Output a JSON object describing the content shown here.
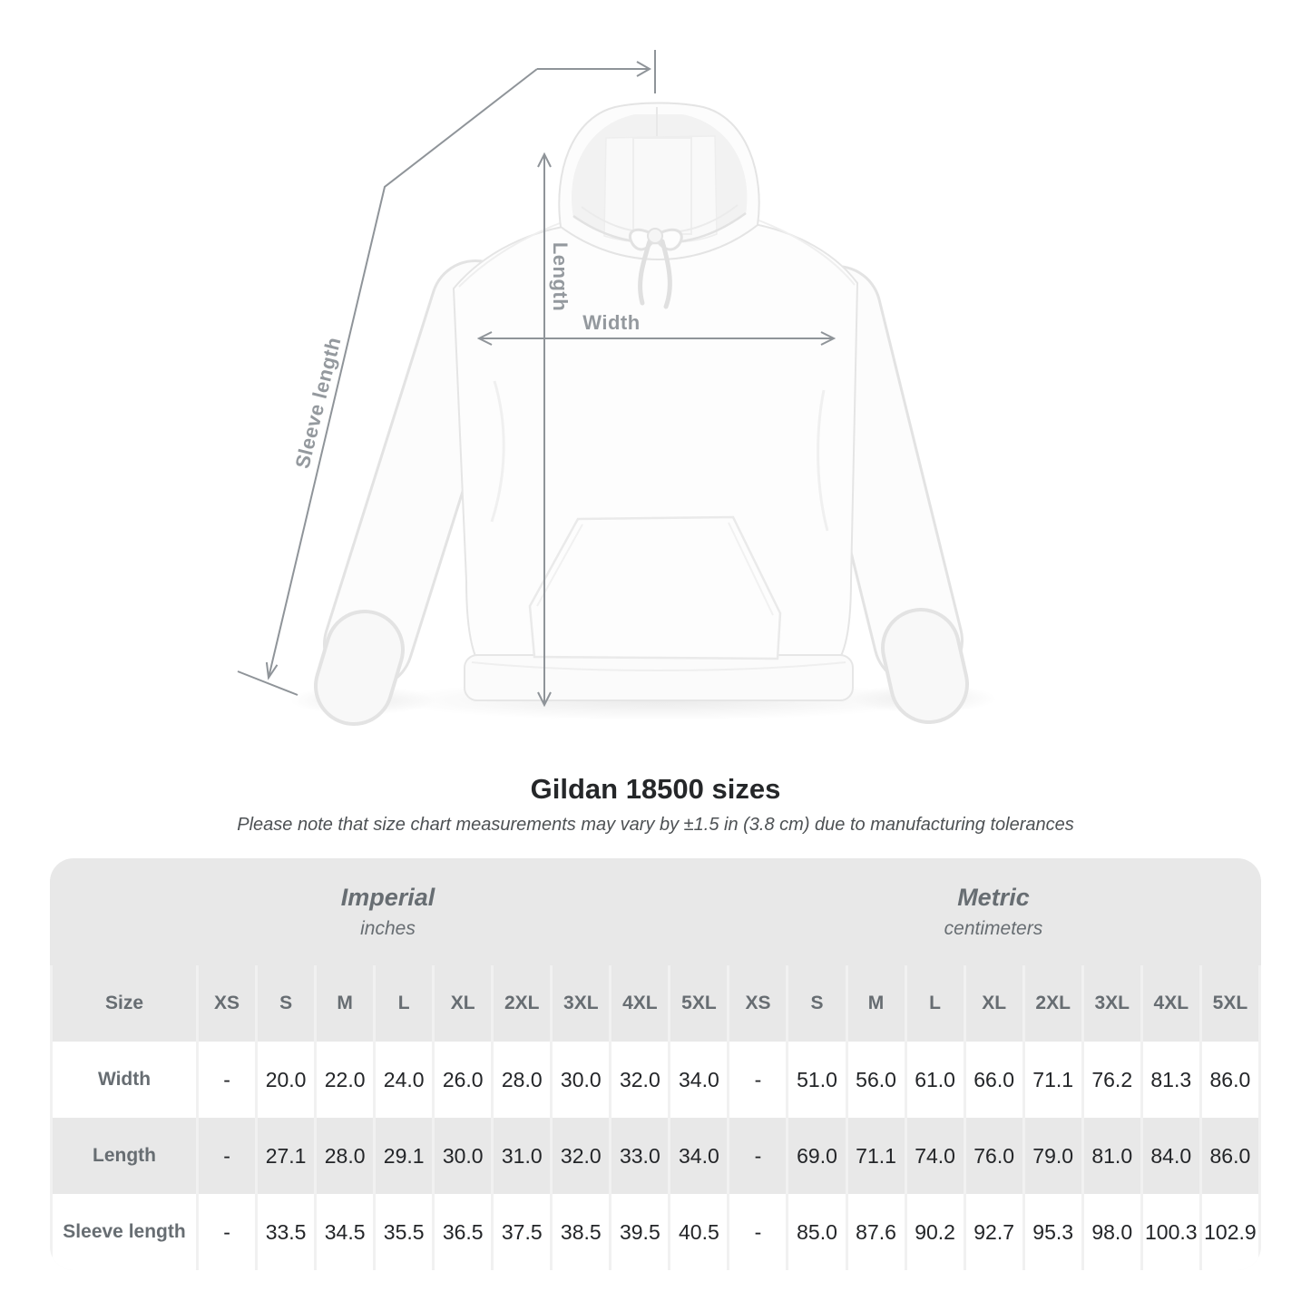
{
  "header": {
    "title": "Gildan 18500 sizes",
    "note": "Please note that size chart measurements may vary by ±1.5 in (3.8 cm) due to manufacturing tolerances"
  },
  "diagram": {
    "labels": {
      "width": "Width",
      "length": "Length",
      "sleeve": "Sleeve length"
    },
    "line_color": "#8f9499",
    "label_color": "#94999e"
  },
  "table": {
    "corner_label": "Size",
    "row_headers": [
      "Width",
      "Length",
      "Sleeve length"
    ],
    "sections": [
      {
        "title": "Imperial",
        "subtitle": "inches",
        "columns": [
          "XS",
          "S",
          "M",
          "L",
          "XL",
          "2XL",
          "3XL",
          "4XL",
          "5XL"
        ],
        "rows": [
          [
            "-",
            "20.0",
            "22.0",
            "24.0",
            "26.0",
            "28.0",
            "30.0",
            "32.0",
            "34.0"
          ],
          [
            "-",
            "27.1",
            "28.0",
            "29.1",
            "30.0",
            "31.0",
            "32.0",
            "33.0",
            "34.0"
          ],
          [
            "-",
            "33.5",
            "34.5",
            "35.5",
            "36.5",
            "37.5",
            "38.5",
            "39.5",
            "40.5"
          ]
        ]
      },
      {
        "title": "Metric",
        "subtitle": "centimeters",
        "columns": [
          "XS",
          "S",
          "M",
          "L",
          "XL",
          "2XL",
          "3XL",
          "4XL",
          "5XL"
        ],
        "rows": [
          [
            "-",
            "51.0",
            "56.0",
            "61.0",
            "66.0",
            "71.1",
            "76.2",
            "81.3",
            "86.0"
          ],
          [
            "-",
            "69.0",
            "71.1",
            "74.0",
            "76.0",
            "79.0",
            "81.0",
            "84.0",
            "86.0"
          ],
          [
            "-",
            "85.0",
            "87.6",
            "90.2",
            "92.7",
            "95.3",
            "98.0",
            "100.3",
            "102.9"
          ]
        ]
      }
    ]
  },
  "chart_data": {
    "type": "table",
    "title": "Gildan 18500 sizes",
    "note": "Please note that size chart measurements may vary by ±1.5 in (3.8 cm) due to manufacturing tolerances",
    "columns": [
      "XS",
      "S",
      "M",
      "L",
      "XL",
      "2XL",
      "3XL",
      "4XL",
      "5XL"
    ],
    "rows": [
      {
        "label": "Width",
        "imperial_in": [
          null,
          20.0,
          22.0,
          24.0,
          26.0,
          28.0,
          30.0,
          32.0,
          34.0
        ],
        "metric_cm": [
          null,
          51.0,
          56.0,
          61.0,
          66.0,
          71.1,
          76.2,
          81.3,
          86.0
        ]
      },
      {
        "label": "Length",
        "imperial_in": [
          null,
          27.1,
          28.0,
          29.1,
          30.0,
          31.0,
          32.0,
          33.0,
          34.0
        ],
        "metric_cm": [
          null,
          69.0,
          71.1,
          74.0,
          76.0,
          79.0,
          81.0,
          84.0,
          86.0
        ]
      },
      {
        "label": "Sleeve length",
        "imperial_in": [
          null,
          33.5,
          34.5,
          35.5,
          36.5,
          37.5,
          38.5,
          39.5,
          40.5
        ],
        "metric_cm": [
          null,
          85.0,
          87.6,
          90.2,
          92.7,
          95.3,
          98.0,
          100.3,
          102.9
        ]
      }
    ]
  }
}
